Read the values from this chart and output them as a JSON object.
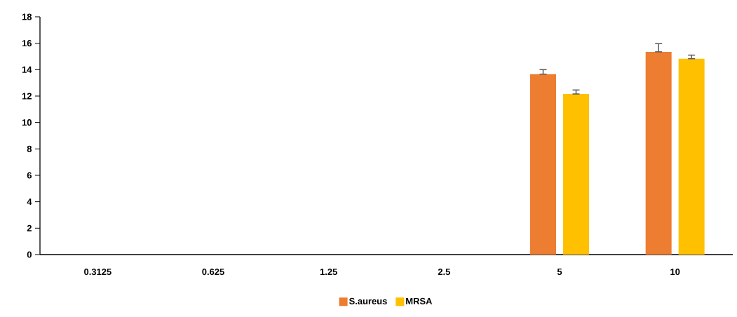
{
  "chart_data": {
    "type": "bar",
    "categories": [
      "0.3125",
      "0.625",
      "1.25",
      "2.5",
      "5",
      "10"
    ],
    "series": [
      {
        "name": "S.aureus",
        "color": "#ed7d31",
        "values": [
          0,
          0,
          0,
          0,
          13.66,
          15.35
        ],
        "errors": [
          null,
          null,
          null,
          null,
          [
            13.66,
            14.0
          ],
          [
            15.35,
            15.97
          ]
        ]
      },
      {
        "name": "MRSA",
        "color": "#ffc000",
        "values": [
          0,
          0,
          0,
          0,
          12.16,
          14.83
        ],
        "errors": [
          null,
          null,
          null,
          null,
          [
            12.16,
            12.46
          ],
          [
            14.83,
            15.1
          ]
        ]
      }
    ],
    "ylim": [
      0,
      18
    ],
    "yticks": [
      0,
      2,
      4,
      6,
      8,
      10,
      12,
      14,
      16,
      18
    ],
    "legend": "bottom",
    "grid": false
  }
}
